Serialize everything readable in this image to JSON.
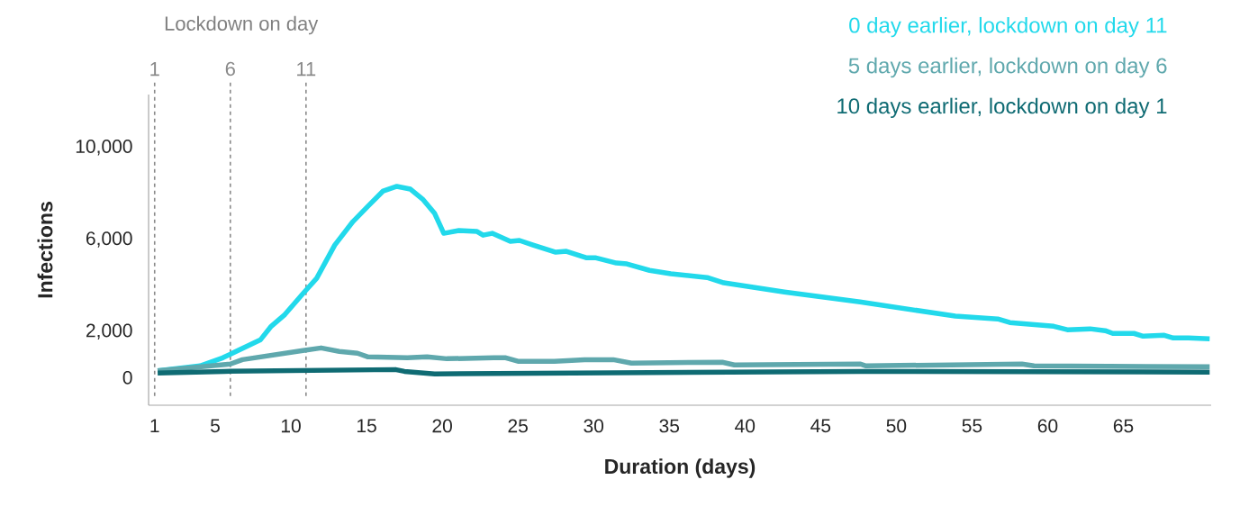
{
  "chart_data": {
    "type": "line",
    "xlabel": "Duration (days)",
    "ylabel": "Infections",
    "xlim": [
      0.6,
      70.8
    ],
    "ylim": [
      -1200,
      12300
    ],
    "xticks": [
      1,
      5,
      10,
      15,
      20,
      25,
      30,
      35,
      40,
      45,
      50,
      55,
      60,
      65
    ],
    "yticks": [
      {
        "value": 0,
        "label": "0"
      },
      {
        "value": 2000,
        "label": "2,000"
      },
      {
        "value": 6000,
        "label": "6,000"
      },
      {
        "value": 10000,
        "label": "10,000"
      }
    ],
    "grid": false,
    "legend": "top right",
    "line_style": "solid",
    "marker": "none",
    "annotations": [
      "Lockdown on day"
    ],
    "ref_lines": [
      {
        "axis": "x",
        "value": 1,
        "label": "1",
        "color": "#8a8a8a",
        "line_style": "dashed"
      },
      {
        "axis": "x",
        "value": 6,
        "label": "6",
        "color": "#8a8a8a",
        "line_style": "dashed"
      },
      {
        "axis": "x",
        "value": 11,
        "label": "11",
        "color": "#8a8a8a",
        "line_style": "dashed"
      }
    ],
    "series": [
      {
        "name": "0 day earlier, lockdown on day 11",
        "color": "#22d9eb",
        "x": [
          1.2,
          4.0,
          5.5,
          8.0,
          8.7,
          9.6,
          10.8,
          11.7,
          12.9,
          14.1,
          15.1,
          16.1,
          17.0,
          17.9,
          18.7,
          19.5,
          20.1,
          21.1,
          22.3,
          22.7,
          23.3,
          24.5,
          25.1,
          26.0,
          27.5,
          28.2,
          29.5,
          30.1,
          31.5,
          32.2,
          33.7,
          35.1,
          37.5,
          38.6,
          42.6,
          47.6,
          53.9,
          56.7,
          57.5,
          60.4,
          61.3,
          62.8,
          63.8,
          64.3,
          65.7,
          66.3,
          67.7,
          68.3,
          69.3,
          70.7
        ],
        "values": [
          300,
          510,
          860,
          1650,
          2230,
          2740,
          3650,
          4310,
          5760,
          6780,
          7450,
          8110,
          8310,
          8190,
          7760,
          7130,
          6270,
          6390,
          6350,
          6190,
          6270,
          5920,
          5960,
          5760,
          5450,
          5490,
          5210,
          5210,
          4980,
          4940,
          4660,
          4510,
          4350,
          4120,
          3720,
          3290,
          2670,
          2550,
          2390,
          2230,
          2080,
          2120,
          2040,
          1920,
          1920,
          1800,
          1840,
          1720,
          1720,
          1690
        ]
      },
      {
        "name": "5 days earlier, lockdown on day 6",
        "color": "#5fa8ad",
        "x": [
          1.2,
          6.0,
          6.8,
          10.8,
          12.0,
          13.2,
          14.4,
          15.1,
          17.7,
          19.0,
          20.3,
          23.4,
          24.2,
          25.0,
          27.4,
          29.4,
          31.3,
          32.5,
          38.5,
          39.3,
          47.6,
          48.0,
          58.3,
          59.1,
          70.7
        ],
        "values": [
          300,
          590,
          780,
          1180,
          1290,
          1140,
          1060,
          900,
          860,
          900,
          820,
          860,
          860,
          710,
          710,
          780,
          780,
          630,
          670,
          550,
          590,
          510,
          590,
          510,
          470
        ]
      },
      {
        "name": "10 days earlier, lockdown on day 1",
        "color": "#0f6b73",
        "x": [
          1.2,
          5.6,
          16.9,
          17.5,
          19.5,
          47.6,
          70.7
        ],
        "values": [
          200,
          270,
          350,
          270,
          160,
          270,
          240
        ]
      }
    ]
  }
}
